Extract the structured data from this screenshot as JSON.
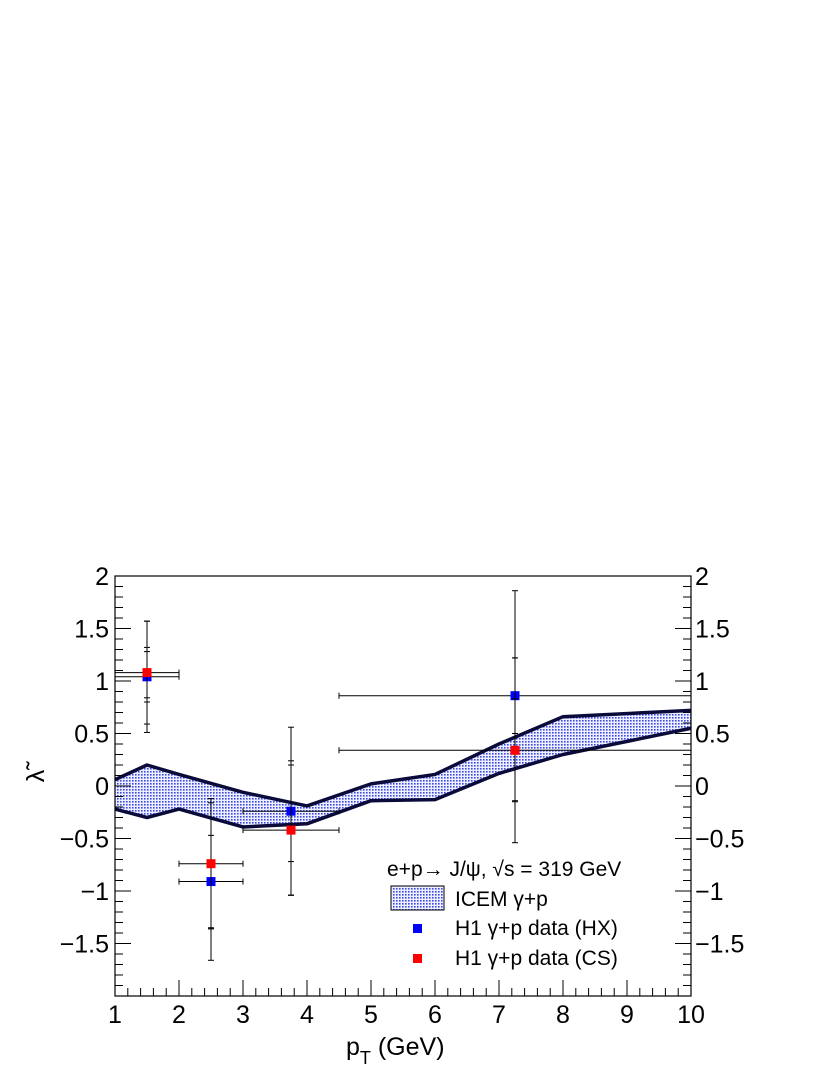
{
  "chart_data": {
    "type": "scatter",
    "xlabel": "p",
    "xlabel_sub": "T",
    "xlabel_unit": " (GeV)",
    "ylabel": "λ̃",
    "xlim": [
      1,
      10
    ],
    "ylim": [
      -2,
      2
    ],
    "x_ticks": [
      1,
      2,
      3,
      4,
      5,
      6,
      7,
      8,
      9,
      10
    ],
    "y_ticks": [
      {
        "value": 2,
        "label": "2"
      },
      {
        "value": 1.5,
        "label": "1.5"
      },
      {
        "value": 1,
        "label": "1"
      },
      {
        "value": 0.5,
        "label": "0.5"
      },
      {
        "value": 0,
        "label": "0"
      },
      {
        "value": -0.5,
        "label": "−0.5"
      },
      {
        "value": -1,
        "label": "−1"
      },
      {
        "value": -1.5,
        "label": "−1.5"
      }
    ],
    "band": {
      "name": "ICEM γ+p",
      "color": "#2f3bd6",
      "outline": "#0b0b3b",
      "x": [
        1,
        1.5,
        2,
        3,
        4,
        5,
        6,
        7,
        8,
        10
      ],
      "upper": [
        0.06,
        0.2,
        0.11,
        -0.06,
        -0.19,
        0.02,
        0.11,
        0.4,
        0.66,
        0.72
      ],
      "lower": [
        -0.22,
        -0.3,
        -0.22,
        -0.39,
        -0.36,
        -0.14,
        -0.13,
        0.12,
        0.3,
        0.55
      ]
    },
    "series": [
      {
        "name": "H1 γ+p data (HX)",
        "color": "#0000ff",
        "points": [
          {
            "x": 1.5,
            "y": 1.04,
            "xerr": [
              0.5,
              0.5
            ],
            "yerr_stat": [
              0.24,
              0.24
            ],
            "yerr_tot": [
              0.53,
              0.53
            ]
          },
          {
            "x": 2.5,
            "y": -0.91,
            "xerr": [
              0.5,
              0.5
            ],
            "yerr_stat": [
              0.44,
              0.44
            ],
            "yerr_tot": [
              0.75,
              0.75
            ]
          },
          {
            "x": 3.75,
            "y": -0.24,
            "xerr": [
              0.75,
              0.75
            ],
            "yerr_stat": [
              0.48,
              0.48
            ],
            "yerr_tot": [
              0.8,
              0.8
            ]
          },
          {
            "x": 7.25,
            "y": 0.86,
            "xerr": [
              2.75,
              2.75
            ],
            "yerr_stat": [
              0.36,
              0.36
            ],
            "yerr_tot": [
              1.0,
              1.0
            ]
          }
        ]
      },
      {
        "name": "H1 γ+p data (CS)",
        "color": "#ff0000",
        "points": [
          {
            "x": 1.5,
            "y": 1.08,
            "xerr": [
              0.5,
              0.5
            ],
            "yerr_stat": [
              0.24,
              0.24
            ],
            "yerr_tot": [
              0.49,
              0.49
            ]
          },
          {
            "x": 2.5,
            "y": -0.74,
            "xerr": [
              0.5,
              0.5
            ],
            "yerr_stat": [
              0.62,
              0.62
            ],
            "yerr_tot": [
              0.62,
              0.62
            ]
          },
          {
            "x": 3.75,
            "y": -0.42,
            "xerr": [
              0.75,
              0.75
            ],
            "yerr_stat": [
              0.62,
              0.62
            ],
            "yerr_tot": [
              0.62,
              0.62
            ]
          },
          {
            "x": 7.25,
            "y": 0.34,
            "xerr": [
              2.75,
              2.75
            ],
            "yerr_stat": [
              0.49,
              0.49
            ],
            "yerr_tot": [
              0.88,
              0.88
            ]
          }
        ]
      }
    ],
    "legend": {
      "placement": "bottom-right",
      "header": "e+p→ J/ψ, √s = 319 GeV",
      "entries": [
        "ICEM γ+p",
        "H1 γ+p data (HX)",
        "H1 γ+p data (CS)"
      ]
    },
    "grid": false
  }
}
